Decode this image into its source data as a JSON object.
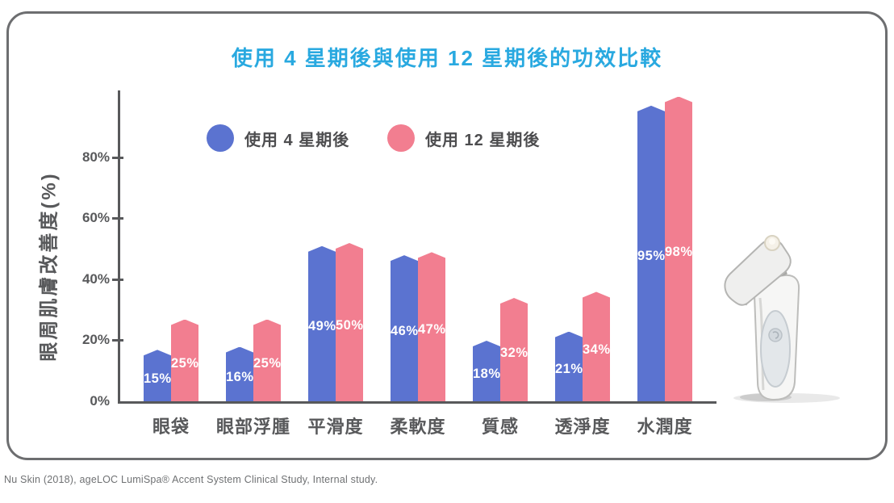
{
  "title": "使用 4 星期後與使用 12 星期後的功效比較",
  "chart_data": {
    "type": "bar",
    "title": "使用 4 星期後與使用 12 星期後的功效比較",
    "categories": [
      "眼袋",
      "眼部浮腫",
      "平滑度",
      "柔軟度",
      "質感",
      "透淨度",
      "水潤度"
    ],
    "series": [
      {
        "name": "使用 4 星期後",
        "color": "#5b73d0",
        "values": [
          15,
          16,
          49,
          46,
          18,
          21,
          95
        ]
      },
      {
        "name": "使用 12 星期後",
        "color": "#f27e90",
        "values": [
          25,
          25,
          50,
          47,
          32,
          34,
          98
        ]
      }
    ],
    "value_label_suffix": "%",
    "ylabel": "眼周肌膚改善度(%)",
    "yticks": [
      {
        "label": "0%",
        "value": 0
      },
      {
        "label": "20%",
        "value": 20
      },
      {
        "label": "40%",
        "value": 40
      },
      {
        "label": "60%",
        "value": 60
      },
      {
        "label": "80%",
        "value": 80
      }
    ],
    "ylim": [
      0,
      100
    ],
    "grid": false,
    "legend_position": "inside-top",
    "bar_top_style": "pointed"
  },
  "footer": "Nu Skin (2018), ageLOC LumiSpa® Accent System Clinical Study, Internal study.",
  "product_image": "ageloc-lumispa-accent-handheld-device",
  "colors": {
    "title": "#29a9e0",
    "axis": "#58595b",
    "category_text": "#58595b",
    "legend_text": "#4d4d4f",
    "value_label": "#ffffff",
    "card_border": "#6d6e70",
    "series_4_weeks": "#5b73d0",
    "series_12_weeks": "#f27e90",
    "footer_text": "#6f7173"
  }
}
